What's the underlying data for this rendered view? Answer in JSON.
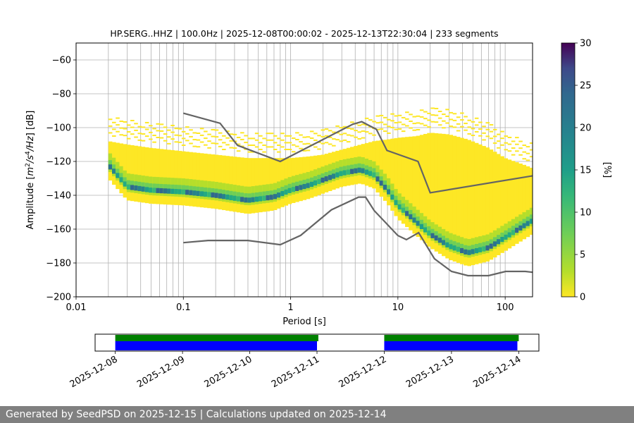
{
  "chart_data": [
    {
      "type": "heatmap",
      "title": "HP.SERG..HHZ | 100.0Hz | 2025-12-08T00:00:02 - 2025-12-13T22:30:04 | 233 segments",
      "xlabel": "Period [s]",
      "ylabel_parts": [
        "Amplitude [",
        "m",
        "2",
        "/",
        "s",
        "4",
        "/",
        "Hz",
        "] [dB]"
      ],
      "xscale": "log",
      "xlim": [
        0.01,
        180
      ],
      "ylim": [
        -200,
        -50
      ],
      "x_ticks": [
        0.01,
        0.1,
        1,
        10,
        100
      ],
      "x_tick_labels": [
        "0.01",
        "0.1",
        "1",
        "10",
        "100"
      ],
      "y_ticks": [
        -200,
        -180,
        -160,
        -140,
        -120,
        -100,
        -80,
        -60
      ],
      "y_tick_labels": [
        "−200",
        "−180",
        "−160",
        "−140",
        "−120",
        "−100",
        "−80",
        "−60"
      ],
      "grid": true,
      "nhnm": {
        "name": "New High Noise Model",
        "periods": [
          0.1,
          0.22,
          0.32,
          0.8,
          3.8,
          4.6,
          6.3,
          7.9,
          15.4,
          20,
          180
        ],
        "values": [
          -91.5,
          -97.4,
          -110.5,
          -120,
          -98,
          -96.5,
          -101,
          -113.5,
          -120,
          -138.5,
          -128.5
        ]
      },
      "nlnm": {
        "name": "New Low Noise Model",
        "periods": [
          0.1,
          0.17,
          0.4,
          0.8,
          1.24,
          2.4,
          4.3,
          5,
          6,
          10,
          12,
          15.6,
          21.9,
          31.6,
          45,
          70,
          101,
          154,
          180
        ],
        "values": [
          -168,
          -166.7,
          -166.7,
          -169.2,
          -163.7,
          -148.6,
          -141.1,
          -141.1,
          -149,
          -163.8,
          -166.2,
          -162.1,
          -177.5,
          -185,
          -187.5,
          -187.5,
          -185,
          -185,
          -185.5
        ]
      },
      "mode_curve": {
        "periods": [
          0.02,
          0.03,
          0.05,
          0.1,
          0.2,
          0.4,
          0.7,
          1.0,
          1.5,
          2.0,
          3.0,
          4.5,
          6.0,
          8.0,
          10,
          15,
          20,
          30,
          45,
          70,
          100,
          150,
          180
        ],
        "values": [
          -122,
          -135,
          -137,
          -138,
          -140,
          -143,
          -141,
          -137,
          -134,
          -131,
          -127,
          -125,
          -128,
          -137,
          -146,
          -156,
          -163,
          -170,
          -174,
          -171,
          -165,
          -158,
          -155
        ]
      },
      "high_percentile_curve": {
        "periods": [
          0.02,
          0.03,
          0.05,
          0.1,
          0.2,
          0.4,
          0.7,
          1.0,
          1.5,
          2.0,
          3.0,
          4.5,
          6.0,
          8.0,
          10,
          15,
          20,
          30,
          45,
          70,
          100,
          150,
          180
        ],
        "values": [
          -108,
          -110,
          -112,
          -114,
          -116,
          -118,
          -118,
          -118,
          -117,
          -116,
          -113,
          -110,
          -108,
          -107,
          -106,
          -105,
          -103,
          -104,
          -107,
          -112,
          -118,
          -122,
          -124
        ]
      },
      "colorbar": {
        "label": "[%]",
        "range": [
          0,
          30
        ],
        "ticks": [
          0,
          5,
          10,
          15,
          20,
          25,
          30
        ],
        "tick_labels": [
          "0",
          "5",
          "10",
          "15",
          "20",
          "25",
          "30"
        ]
      }
    },
    {
      "type": "timeline",
      "x_tick_labels": [
        "2025-12-08",
        "2025-12-09",
        "2025-12-10",
        "2025-12-11",
        "2025-12-12",
        "2025-12-13",
        "2025-12-14"
      ],
      "range_days": [
        -0.3,
        6.3
      ],
      "coverage_green": [
        [
          0.0,
          3.02
        ],
        [
          4.0,
          6.0
        ]
      ],
      "coverage_blue": [
        [
          0.0,
          3.0
        ],
        [
          4.0,
          5.98
        ]
      ],
      "colors": {
        "green": "#008000",
        "blue": "#0000ff"
      }
    }
  ],
  "footer": {
    "text": "Generated by SeedPSD on 2025-12-15 | Calculations updated on 2025-12-14"
  }
}
